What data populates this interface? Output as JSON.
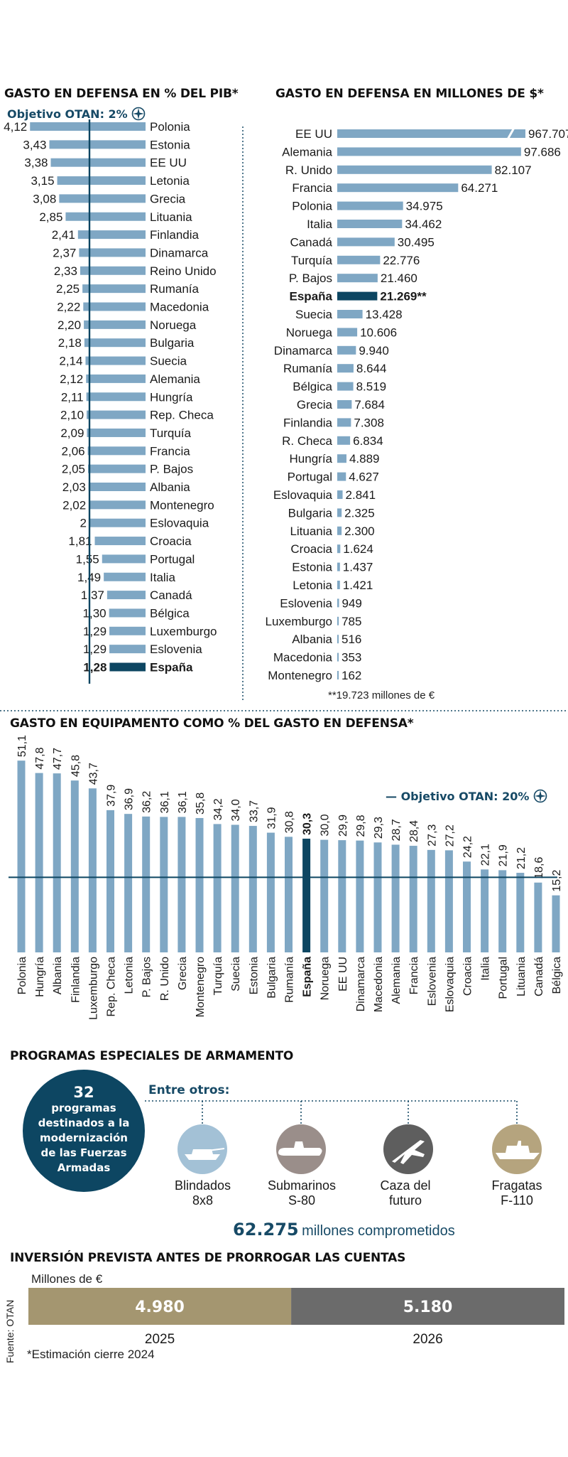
{
  "colors": {
    "bar": "#7fa7c4",
    "highlight": "#0d4662",
    "navy": "#174a66",
    "tan": "#a49670",
    "gray": "#6b6b6b",
    "circle_light": "#a3c1d6",
    "circle_mid": "#9a8e8a",
    "circle_dark": "#5e5e5e",
    "circle_tan": "#b5a47e"
  },
  "section1": {
    "title": "GASTO EN DEFENSA EN % DEL PIB*",
    "target_label": "Objetivo OTAN: 2%",
    "target_icon": "nato-compass-icon"
  },
  "section2": {
    "title": "GASTO EN DEFENSA EN MILLONES DE $*",
    "footnote": "**19.723 millones de €"
  },
  "section3": {
    "title": "GASTO EN EQUIPAMENTO COMO % DEL GASTO EN DEFENSA*",
    "target_label": "— Objetivo OTAN: 20%",
    "target_icon": "nato-compass-icon"
  },
  "section4": {
    "title": "PROGRAMAS ESPECIALES DE ARMAMENTO",
    "circle_number": "32",
    "circle_text": [
      "programas",
      "destinados a la",
      "modernización",
      "de las Fuerzas",
      "Armadas"
    ],
    "among_label": "Entre otros:",
    "programs": [
      {
        "line1": "Blindados",
        "line2": "8x8",
        "icon": "tank-icon"
      },
      {
        "line1": "Submarinos",
        "line2": "S-80",
        "icon": "submarine-icon"
      },
      {
        "line1": "Caza del",
        "line2": "futuro",
        "icon": "fighter-jet-icon"
      },
      {
        "line1": "Fragatas",
        "line2": "F-110",
        "icon": "frigate-icon"
      }
    ],
    "committed_value": "62.275",
    "committed_label": "millones comprometidos"
  },
  "section5": {
    "title": "INVERSIÓN PREVISTA ANTES DE PRORROGAR LAS CUENTAS",
    "unit": "Millones de €",
    "source": "Fuente: OTAN",
    "footnote": "*Estimación cierre 2024"
  },
  "chart_data": [
    {
      "type": "bar",
      "orientation": "horizontal",
      "title": "GASTO EN DEFENSA EN % DEL PIB*",
      "categories": [
        "Polonia",
        "Estonia",
        "EE UU",
        "Letonia",
        "Grecia",
        "Lituania",
        "Finlandia",
        "Dinamarca",
        "Reino Unido",
        "Rumanía",
        "Macedonia",
        "Noruega",
        "Bulgaria",
        "Suecia",
        "Alemania",
        "Hungría",
        "Rep. Checa",
        "Turquía",
        "Francia",
        "P. Bajos",
        "Albania",
        "Montenegro",
        "Eslovaquia",
        "Croacia",
        "Portugal",
        "Italia",
        "Canadá",
        "Bélgica",
        "Luxemburgo",
        "Eslovenia",
        "España"
      ],
      "values": [
        4.12,
        3.43,
        3.38,
        3.15,
        3.08,
        2.85,
        2.41,
        2.37,
        2.33,
        2.25,
        2.22,
        2.2,
        2.18,
        2.14,
        2.12,
        2.11,
        2.1,
        2.09,
        2.06,
        2.05,
        2.03,
        2.02,
        2,
        1.81,
        1.55,
        1.49,
        1.37,
        1.3,
        1.29,
        1.29,
        1.28
      ],
      "value_labels": [
        "4,12",
        "3,43",
        "3,38",
        "3,15",
        "3,08",
        "2,85",
        "2,41",
        "2,37",
        "2,33",
        "2,25",
        "2,22",
        "2,20",
        "2,18",
        "2,14",
        "2,12",
        "2,11",
        "2,10",
        "2,09",
        "2,06",
        "2,05",
        "2,03",
        "2,02",
        "2",
        "1,81",
        "1,55",
        "1,49",
        "1,37",
        "1,30",
        "1,29",
        "1,29",
        "1,28"
      ],
      "highlight": "España",
      "reference_line": 2
    },
    {
      "type": "bar",
      "orientation": "horizontal",
      "title": "GASTO EN DEFENSA EN MILLONES DE $*",
      "categories": [
        "EE UU",
        "Alemania",
        "R. Unido",
        "Francia",
        "Polonia",
        "Italia",
        "Canadá",
        "Turquía",
        "P. Bajos",
        "España",
        "Suecia",
        "Noruega",
        "Dinamarca",
        "Rumanía",
        "Bélgica",
        "Grecia",
        "Finlandia",
        "R. Checa",
        "Hungría",
        "Portugal",
        "Eslovaquia",
        "Bulgaria",
        "Lituania",
        "Croacia",
        "Estonia",
        "Letonia",
        "Eslovenia",
        "Luxemburgo",
        "Albania",
        "Macedonia",
        "Montenegro"
      ],
      "values": [
        967707,
        97686,
        82107,
        64271,
        34975,
        34462,
        30495,
        22776,
        21460,
        21269,
        13428,
        10606,
        9940,
        8644,
        8519,
        7684,
        7308,
        6834,
        4889,
        4627,
        2841,
        2325,
        2300,
        1624,
        1437,
        1421,
        949,
        785,
        516,
        353,
        162
      ],
      "value_labels": [
        "967.707",
        "97.686",
        "82.107",
        "64.271",
        "34.975",
        "34.462",
        "30.495",
        "22.776",
        "21.460",
        "21.269**",
        "13.428",
        "10.606",
        "9.940",
        "8.644",
        "8.519",
        "7.684",
        "7.308",
        "6.834",
        "4.889",
        "4.627",
        "2.841",
        "2.325",
        "2.300",
        "1.624",
        "1.437",
        "1.421",
        "949",
        "785",
        "516",
        "353",
        "162"
      ],
      "highlight": "España",
      "broken_axis_first_bar": true
    },
    {
      "type": "bar",
      "orientation": "vertical",
      "title": "GASTO EN EQUIPAMENTO COMO % DEL GASTO EN DEFENSA*",
      "categories": [
        "Polonia",
        "Hungría",
        "Albania",
        "Finlandia",
        "Luxemburgo",
        "Rep. Checa",
        "Letonia",
        "P. Bajos",
        "R. Unido",
        "Grecia",
        "Montenegro",
        "Turquía",
        "Suecia",
        "Estonia",
        "Bulgaria",
        "Rumanía",
        "España",
        "Noruega",
        "EE UU",
        "Dinamarca",
        "Macedonia",
        "Alemania",
        "Francia",
        "Eslovenia",
        "Eslovaquia",
        "Croacia",
        "Italia",
        "Portugal",
        "Lituania",
        "Canadá",
        "Bélgica"
      ],
      "values": [
        51.1,
        47.8,
        47.7,
        45.8,
        43.7,
        37.9,
        36.9,
        36.2,
        36.1,
        36.1,
        35.8,
        34.2,
        34.0,
        33.7,
        31.9,
        30.8,
        30.3,
        30.0,
        29.9,
        29.8,
        29.3,
        28.7,
        28.4,
        27.3,
        27.2,
        24.2,
        22.1,
        21.9,
        21.2,
        18.6,
        15.2
      ],
      "value_labels": [
        "51,1",
        "47,8",
        "47,7",
        "45,8",
        "43,7",
        "37,9",
        "36,9",
        "36,2",
        "36,1",
        "36,1",
        "35,8",
        "34,2",
        "34,0",
        "33,7",
        "31,9",
        "30,8",
        "30,3",
        "30,0",
        "29,9",
        "29,8",
        "29,3",
        "28,7",
        "28,4",
        "27,3",
        "27,2",
        "24,2",
        "22,1",
        "21,9",
        "21,2",
        "18,6",
        "15,2"
      ],
      "highlight": "España",
      "reference_line": 20
    },
    {
      "type": "bar",
      "orientation": "stacked-horizontal",
      "title": "INVERSIÓN PREVISTA ANTES DE PRORROGAR LAS CUENTAS",
      "ylabel": "Millones de €",
      "categories": [
        "2025",
        "2026"
      ],
      "values": [
        4980,
        5180
      ],
      "value_labels": [
        "4.980",
        "5.180"
      ]
    }
  ]
}
